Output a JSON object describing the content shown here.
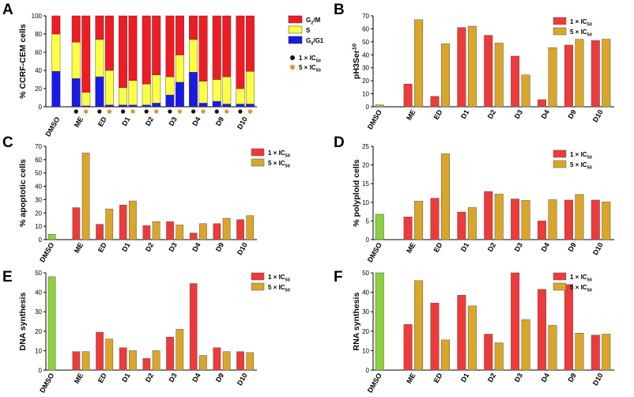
{
  "colors": {
    "g2m": "#ee1c24",
    "s": "#ffff44",
    "g0g1": "#1a1ae6",
    "low": "#ee3a3a",
    "high": "#d9a62a",
    "control": "#8cd23c",
    "dot_low": "#111111",
    "dot_high": "#f28a2a"
  },
  "chart_data": [
    {
      "panel": "A",
      "type": "bar",
      "stacked": true,
      "ylabel": "% CCRF-CEM cells",
      "ylim": [
        0,
        100
      ],
      "yticks": [
        0,
        20,
        40,
        60,
        80,
        100
      ],
      "categories": [
        "DMSO",
        "ME",
        "ED",
        "D1",
        "D2",
        "D3",
        "D4",
        "D9",
        "D10"
      ],
      "stack_series": [
        {
          "name": "G2/M",
          "color_key": "g2m"
        },
        {
          "name": "S",
          "color_key": "s"
        },
        {
          "name": "G0/G1",
          "color_key": "g0g1"
        }
      ],
      "legend_markers": [
        {
          "symbol": "●",
          "color_key": "dot_low",
          "label": "1 × IC50"
        },
        {
          "symbol": "●",
          "color_key": "dot_high",
          "label": "5 × IC50"
        }
      ],
      "bars": [
        {
          "category": "DMSO",
          "dose": "control",
          "g0g1": 39,
          "s": 41,
          "g2m": 20
        },
        {
          "category": "ME",
          "dose": "low",
          "g0g1": 31,
          "s": 40,
          "g2m": 29
        },
        {
          "category": "ME",
          "dose": "high",
          "g0g1": 1,
          "s": 15,
          "g2m": 84
        },
        {
          "category": "ED",
          "dose": "low",
          "g0g1": 33,
          "s": 41,
          "g2m": 26
        },
        {
          "category": "ED",
          "dose": "high",
          "g0g1": 2,
          "s": 38,
          "g2m": 60
        },
        {
          "category": "D1",
          "dose": "low",
          "g0g1": 2,
          "s": 19,
          "g2m": 79
        },
        {
          "category": "D1",
          "dose": "high",
          "g0g1": 2,
          "s": 27,
          "g2m": 71
        },
        {
          "category": "D2",
          "dose": "low",
          "g0g1": 2,
          "s": 23,
          "g2m": 75
        },
        {
          "category": "D2",
          "dose": "high",
          "g0g1": 4,
          "s": 31,
          "g2m": 65
        },
        {
          "category": "D3",
          "dose": "low",
          "g0g1": 13,
          "s": 20,
          "g2m": 67
        },
        {
          "category": "D3",
          "dose": "high",
          "g0g1": 27,
          "s": 30,
          "g2m": 43
        },
        {
          "category": "D4",
          "dose": "low",
          "g0g1": 38,
          "s": 36,
          "g2m": 26
        },
        {
          "category": "D4",
          "dose": "high",
          "g0g1": 4,
          "s": 24,
          "g2m": 72
        },
        {
          "category": "D9",
          "dose": "low",
          "g0g1": 6,
          "s": 24,
          "g2m": 70
        },
        {
          "category": "D9",
          "dose": "high",
          "g0g1": 3,
          "s": 30,
          "g2m": 67
        },
        {
          "category": "D10",
          "dose": "low",
          "g0g1": 3,
          "s": 17,
          "g2m": 80
        },
        {
          "category": "D10",
          "dose": "high",
          "g0g1": 3,
          "s": 36,
          "g2m": 61
        }
      ]
    },
    {
      "panel": "B",
      "type": "bar",
      "ylabel": "pH3Ser10",
      "ylim": [
        0,
        70
      ],
      "yticks": [
        0,
        10,
        20,
        30,
        40,
        50,
        60,
        70
      ],
      "categories": [
        "DMSO",
        "ME",
        "ED",
        "D1",
        "D2",
        "D3",
        "D4",
        "D9",
        "D10"
      ],
      "control": 1.5,
      "series": [
        {
          "name": "1 × IC50",
          "color_key": "low",
          "values": [
            null,
            17.5,
            8,
            61,
            55,
            39,
            5.5,
            47.5,
            51
          ]
        },
        {
          "name": "5 × IC50",
          "color_key": "high",
          "values": [
            null,
            67,
            48.5,
            62,
            49,
            24.5,
            45.5,
            52,
            52
          ]
        }
      ]
    },
    {
      "panel": "C",
      "type": "bar",
      "ylabel": "% apoptotic cells",
      "ylim": [
        0,
        70
      ],
      "yticks": [
        0,
        10,
        20,
        30,
        40,
        50,
        60,
        70
      ],
      "categories": [
        "DMSO",
        "ME",
        "ED",
        "D1",
        "D2",
        "D3",
        "D4",
        "D9",
        "D10"
      ],
      "control": 4,
      "series": [
        {
          "name": "1 × IC50",
          "color_key": "low",
          "values": [
            null,
            24,
            11.5,
            26,
            10.5,
            13.5,
            5,
            12,
            15
          ]
        },
        {
          "name": "5 × IC50",
          "color_key": "high",
          "values": [
            null,
            65,
            23,
            29,
            13.5,
            11,
            12,
            16,
            18
          ]
        }
      ]
    },
    {
      "panel": "D",
      "type": "bar",
      "ylabel": "% polyploid cells",
      "ylim": [
        0,
        25
      ],
      "yticks": [
        0,
        5,
        10,
        15,
        20,
        25
      ],
      "categories": [
        "DMSO",
        "ME",
        "ED",
        "D1",
        "D2",
        "D3",
        "D4",
        "D9",
        "D10"
      ],
      "control": 6.8,
      "series": [
        {
          "name": "1 × IC50",
          "color_key": "low",
          "values": [
            null,
            6.1,
            11.1,
            7.4,
            12.9,
            10.9,
            5.0,
            10.6,
            10.6
          ]
        },
        {
          "name": "5 × IC50",
          "color_key": "high",
          "values": [
            null,
            10.3,
            23.0,
            8.6,
            12.2,
            10.5,
            10.7,
            12.1,
            10.1
          ]
        }
      ]
    },
    {
      "panel": "E",
      "type": "bar",
      "ylabel": "DNA synthesis",
      "ylim": [
        0,
        50
      ],
      "yticks": [
        0,
        10,
        20,
        30,
        40,
        50
      ],
      "categories": [
        "DMSO",
        "ME",
        "ED",
        "D1",
        "D2",
        "D3",
        "D4",
        "D9",
        "D10"
      ],
      "control": 48,
      "series": [
        {
          "name": "1 × IC50",
          "color_key": "low",
          "values": [
            null,
            9.5,
            19.5,
            11.5,
            6,
            17,
            44.5,
            11.5,
            9.5
          ]
        },
        {
          "name": "5 × IC50",
          "color_key": "high",
          "values": [
            null,
            9.5,
            16,
            10,
            10,
            21,
            7.5,
            9.5,
            9
          ]
        }
      ]
    },
    {
      "panel": "F",
      "type": "bar",
      "ylabel": "RNA synthesis",
      "ylim": [
        0,
        50
      ],
      "yticks": [
        0,
        10,
        20,
        30,
        40,
        50
      ],
      "categories": [
        "DMSO",
        "ME",
        "ED",
        "D1",
        "D2",
        "D3",
        "D4",
        "D9",
        "D10"
      ],
      "control": 50,
      "series": [
        {
          "name": "1 × IC50",
          "color_key": "low",
          "values": [
            null,
            23.5,
            34.5,
            38.5,
            18.5,
            50,
            41.5,
            44,
            18
          ]
        },
        {
          "name": "5 × IC50",
          "color_key": "high",
          "values": [
            null,
            46,
            15.5,
            33,
            14,
            26,
            23,
            19,
            18.5
          ]
        }
      ]
    }
  ]
}
